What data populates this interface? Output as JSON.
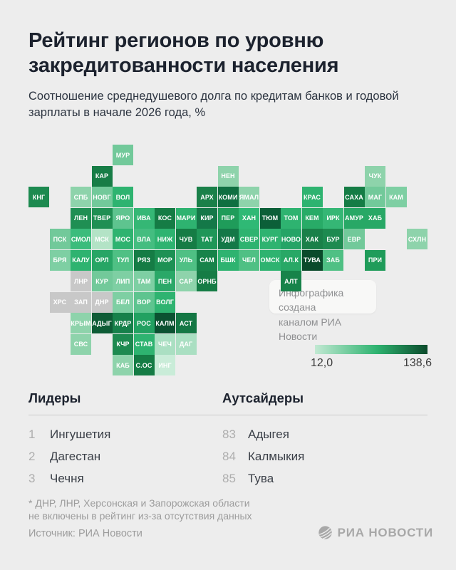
{
  "page": {
    "background": "#ededed"
  },
  "header": {
    "title_line1": "Рейтинг регионов по уровню",
    "title_line2": "закредитованности населения",
    "subtitle_line1": "Соотношение среднедушевого долга по кредитам банков и годовой",
    "subtitle_line2": "зарплаты в начале 2026 года, %"
  },
  "map": {
    "tooltip_line1": "Инфографика создана",
    "tooltip_line2": "каналом РИА Новости",
    "no_data_color": "#c8c8c8",
    "tiles": [
      {
        "code": "МУР",
        "col": 4,
        "row": 0,
        "color": "#72c99a"
      },
      {
        "code": "КАР",
        "col": 3,
        "row": 1,
        "color": "#177d46"
      },
      {
        "code": "НЕН",
        "col": 9,
        "row": 1,
        "color": "#8ed3ab"
      },
      {
        "code": "ЧУК",
        "col": 16,
        "row": 1,
        "color": "#8ed3ab"
      },
      {
        "code": "КНГ",
        "col": 0,
        "row": 2,
        "color": "#1d8a50"
      },
      {
        "code": "СПБ",
        "col": 2,
        "row": 2,
        "color": "#8ed3ab"
      },
      {
        "code": "НОВГ",
        "col": 3,
        "row": 2,
        "color": "#72c99a"
      },
      {
        "code": "ВОЛ",
        "col": 4,
        "row": 2,
        "color": "#2eb370"
      },
      {
        "code": "АРХ",
        "col": 8,
        "row": 2,
        "color": "#1a8049"
      },
      {
        "code": "КОМИ",
        "col": 9,
        "row": 2,
        "color": "#0f6f41"
      },
      {
        "code": "ЯМАЛ",
        "col": 10,
        "row": 2,
        "color": "#8ed3ab"
      },
      {
        "code": "КРАС",
        "col": 13,
        "row": 2,
        "color": "#2eb370"
      },
      {
        "code": "САХА",
        "col": 15,
        "row": 2,
        "color": "#157c45"
      },
      {
        "code": "МАГ",
        "col": 16,
        "row": 2,
        "color": "#72c99a"
      },
      {
        "code": "КАМ",
        "col": 17,
        "row": 2,
        "color": "#7ecfa3"
      },
      {
        "code": "ЛЕН",
        "col": 2,
        "row": 3,
        "color": "#1f8f53"
      },
      {
        "code": "ТВЕР",
        "col": 3,
        "row": 3,
        "color": "#1f8f53"
      },
      {
        "code": "ЯРО",
        "col": 4,
        "row": 3,
        "color": "#5ec48f"
      },
      {
        "code": "ИВА",
        "col": 5,
        "row": 3,
        "color": "#35b775"
      },
      {
        "code": "КОС",
        "col": 6,
        "row": 3,
        "color": "#157c45"
      },
      {
        "code": "МАРИ",
        "col": 7,
        "row": 3,
        "color": "#2eb370"
      },
      {
        "code": "КИР",
        "col": 8,
        "row": 3,
        "color": "#147848"
      },
      {
        "code": "ПЕР",
        "col": 9,
        "row": 3,
        "color": "#1f9c5a"
      },
      {
        "code": "ХАН",
        "col": 10,
        "row": 3,
        "color": "#2fb975"
      },
      {
        "code": "ТЮМ",
        "col": 11,
        "row": 3,
        "color": "#0c5f38"
      },
      {
        "code": "ТОМ",
        "col": 12,
        "row": 3,
        "color": "#2eb370"
      },
      {
        "code": "КЕМ",
        "col": 13,
        "row": 3,
        "color": "#28ab67"
      },
      {
        "code": "ИРК",
        "col": 14,
        "row": 3,
        "color": "#35b775"
      },
      {
        "code": "АМУР",
        "col": 15,
        "row": 3,
        "color": "#28a866"
      },
      {
        "code": "ХАБ",
        "col": 16,
        "row": 3,
        "color": "#28a866"
      },
      {
        "code": "ПСК",
        "col": 1,
        "row": 4,
        "color": "#72c99a"
      },
      {
        "code": "СМОЛ",
        "col": 2,
        "row": 4,
        "color": "#3bbc7c"
      },
      {
        "code": "МСК",
        "col": 3,
        "row": 4,
        "color": "#b3e3c6"
      },
      {
        "code": "МОС",
        "col": 4,
        "row": 4,
        "color": "#2eb370"
      },
      {
        "code": "ВЛА",
        "col": 5,
        "row": 4,
        "color": "#44bd80"
      },
      {
        "code": "НИЖ",
        "col": 6,
        "row": 4,
        "color": "#2eb370"
      },
      {
        "code": "ЧУВ",
        "col": 7,
        "row": 4,
        "color": "#157c45"
      },
      {
        "code": "ТАТ",
        "col": 8,
        "row": 4,
        "color": "#1f9658"
      },
      {
        "code": "УДМ",
        "col": 9,
        "row": 4,
        "color": "#147848"
      },
      {
        "code": "СВЕР",
        "col": 10,
        "row": 4,
        "color": "#2eb370"
      },
      {
        "code": "КУРГ",
        "col": 11,
        "row": 4,
        "color": "#2eb370"
      },
      {
        "code": "НОВО",
        "col": 12,
        "row": 4,
        "color": "#25a466"
      },
      {
        "code": "ХАК",
        "col": 13,
        "row": 4,
        "color": "#1a8049"
      },
      {
        "code": "БУР",
        "col": 14,
        "row": 4,
        "color": "#1d8a50"
      },
      {
        "code": "ЕВР",
        "col": 15,
        "row": 4,
        "color": "#72c99a"
      },
      {
        "code": "СХЛН",
        "col": 18,
        "row": 4,
        "color": "#8ed3ab"
      },
      {
        "code": "БРЯ",
        "col": 1,
        "row": 5,
        "color": "#7ecfa3"
      },
      {
        "code": "КАЛУ",
        "col": 2,
        "row": 5,
        "color": "#2eb370"
      },
      {
        "code": "ОРЛ",
        "col": 3,
        "row": 5,
        "color": "#27a565"
      },
      {
        "code": "ТУЛ",
        "col": 4,
        "row": 5,
        "color": "#4fc084"
      },
      {
        "code": "РЯЗ",
        "col": 5,
        "row": 5,
        "color": "#157c45"
      },
      {
        "code": "МОР",
        "col": 6,
        "row": 5,
        "color": "#1d9154"
      },
      {
        "code": "УЛЬ",
        "col": 7,
        "row": 5,
        "color": "#4fc084"
      },
      {
        "code": "САМ",
        "col": 8,
        "row": 5,
        "color": "#17834a"
      },
      {
        "code": "БШК",
        "col": 9,
        "row": 5,
        "color": "#2eb370"
      },
      {
        "code": "ЧЕЛ",
        "col": 10,
        "row": 5,
        "color": "#4fc084"
      },
      {
        "code": "ОМСК",
        "col": 11,
        "row": 5,
        "color": "#2eb370"
      },
      {
        "code": "АЛ.К",
        "col": 12,
        "row": 5,
        "color": "#28a866"
      },
      {
        "code": "ТУВА",
        "col": 13,
        "row": 5,
        "color": "#0a4a2b"
      },
      {
        "code": "ЗАБ",
        "col": 14,
        "row": 5,
        "color": "#4fc084"
      },
      {
        "code": "ПРИ",
        "col": 16,
        "row": 5,
        "color": "#1f9c5a"
      },
      {
        "code": "ЛНР",
        "col": 2,
        "row": 6,
        "color": "#c8c8c8"
      },
      {
        "code": "КУР",
        "col": 3,
        "row": 6,
        "color": "#72c99a"
      },
      {
        "code": "ЛИП",
        "col": 4,
        "row": 6,
        "color": "#7ecfa3"
      },
      {
        "code": "ТАМ",
        "col": 5,
        "row": 6,
        "color": "#7ecfa3"
      },
      {
        "code": "ПЕН",
        "col": 6,
        "row": 6,
        "color": "#2aa868"
      },
      {
        "code": "САР",
        "col": 7,
        "row": 6,
        "color": "#8ed3ab"
      },
      {
        "code": "ОРНБ",
        "col": 8,
        "row": 6,
        "color": "#157c45"
      },
      {
        "code": "АЛТ",
        "col": 12,
        "row": 6,
        "color": "#17834a"
      },
      {
        "code": "ХРС",
        "col": 1,
        "row": 7,
        "color": "#c8c8c8"
      },
      {
        "code": "ЗАП",
        "col": 2,
        "row": 7,
        "color": "#c8c8c8"
      },
      {
        "code": "ДНР",
        "col": 3,
        "row": 7,
        "color": "#c8c8c8"
      },
      {
        "code": "БЕЛ",
        "col": 4,
        "row": 7,
        "color": "#7ecfa3"
      },
      {
        "code": "ВОР",
        "col": 5,
        "row": 7,
        "color": "#5ec48f"
      },
      {
        "code": "ВОЛГ",
        "col": 6,
        "row": 7,
        "color": "#2eb370"
      },
      {
        "code": "КРЫМ",
        "col": 2,
        "row": 8,
        "color": "#8ed3ab"
      },
      {
        "code": "АДЫГ",
        "col": 3,
        "row": 8,
        "color": "#0e5c36"
      },
      {
        "code": "КРДР",
        "col": 4,
        "row": 8,
        "color": "#16804a"
      },
      {
        "code": "РОС",
        "col": 5,
        "row": 8,
        "color": "#22a161"
      },
      {
        "code": "КАЛМ",
        "col": 6,
        "row": 8,
        "color": "#0b5231"
      },
      {
        "code": "АСТ",
        "col": 7,
        "row": 8,
        "color": "#147744"
      },
      {
        "code": "СВС",
        "col": 2,
        "row": 9,
        "color": "#8ed3ab"
      },
      {
        "code": "КЧР",
        "col": 4,
        "row": 9,
        "color": "#1d8a50"
      },
      {
        "code": "СТАВ",
        "col": 5,
        "row": 9,
        "color": "#2eb370"
      },
      {
        "code": "ЧЕЧ",
        "col": 6,
        "row": 9,
        "color": "#aadfc2"
      },
      {
        "code": "ДАГ",
        "col": 7,
        "row": 9,
        "color": "#aadfc2"
      },
      {
        "code": "КАБ",
        "col": 4,
        "row": 10,
        "color": "#8ed3ab"
      },
      {
        "code": "С.ОС",
        "col": 5,
        "row": 10,
        "color": "#157c45"
      },
      {
        "code": "ИНГ",
        "col": 6,
        "row": 10,
        "color": "#c9ecd8"
      }
    ]
  },
  "legend": {
    "min_label": "12,0",
    "max_label": "138,6",
    "low_color": "#c2e9d3",
    "high_color": "#0b4a2b"
  },
  "lists": {
    "leaders": {
      "title": "Лидеры",
      "items": [
        {
          "rank": "1",
          "name": "Ингушетия"
        },
        {
          "rank": "2",
          "name": "Дагестан"
        },
        {
          "rank": "3",
          "name": "Чечня"
        }
      ]
    },
    "outsiders": {
      "title": "Аутсайдеры",
      "items": [
        {
          "rank": "83",
          "name": "Адыгея"
        },
        {
          "rank": "84",
          "name": "Калмыкия"
        },
        {
          "rank": "85",
          "name": "Тува"
        }
      ]
    }
  },
  "footer": {
    "footnote_line1": "* ДНР, ЛНР, Херсонская и Запорожская области",
    "footnote_line2": "не включены в рейтинг из-за отсутствия данных",
    "source": "Источник: РИА Новости",
    "logo_text": "РИА НОВОСТИ"
  },
  "chart_data": {
    "type": "heatmap",
    "title": "Рейтинг регионов по уровню закредитованности населения",
    "subtitle": "Соотношение среднедушевого долга по кредитам банков и годовой зарплаты в начале 2026 года, %",
    "unit": "%",
    "scale": {
      "min": 12.0,
      "max": 138.6,
      "low_color": "#c2e9d3",
      "high_color": "#0b4a2b",
      "no_data_color": "#c8c8c8"
    },
    "leaders": [
      {
        "rank": 1,
        "region": "Ингушетия"
      },
      {
        "rank": 2,
        "region": "Дагестан"
      },
      {
        "rank": 3,
        "region": "Чечня"
      }
    ],
    "outsiders": [
      {
        "rank": 83,
        "region": "Адыгея"
      },
      {
        "rank": 84,
        "region": "Калмыкия"
      },
      {
        "rank": 85,
        "region": "Тува"
      }
    ],
    "excluded_regions": [
      "ДНР",
      "ЛНР",
      "Херсонская область",
      "Запорожская область"
    ]
  }
}
